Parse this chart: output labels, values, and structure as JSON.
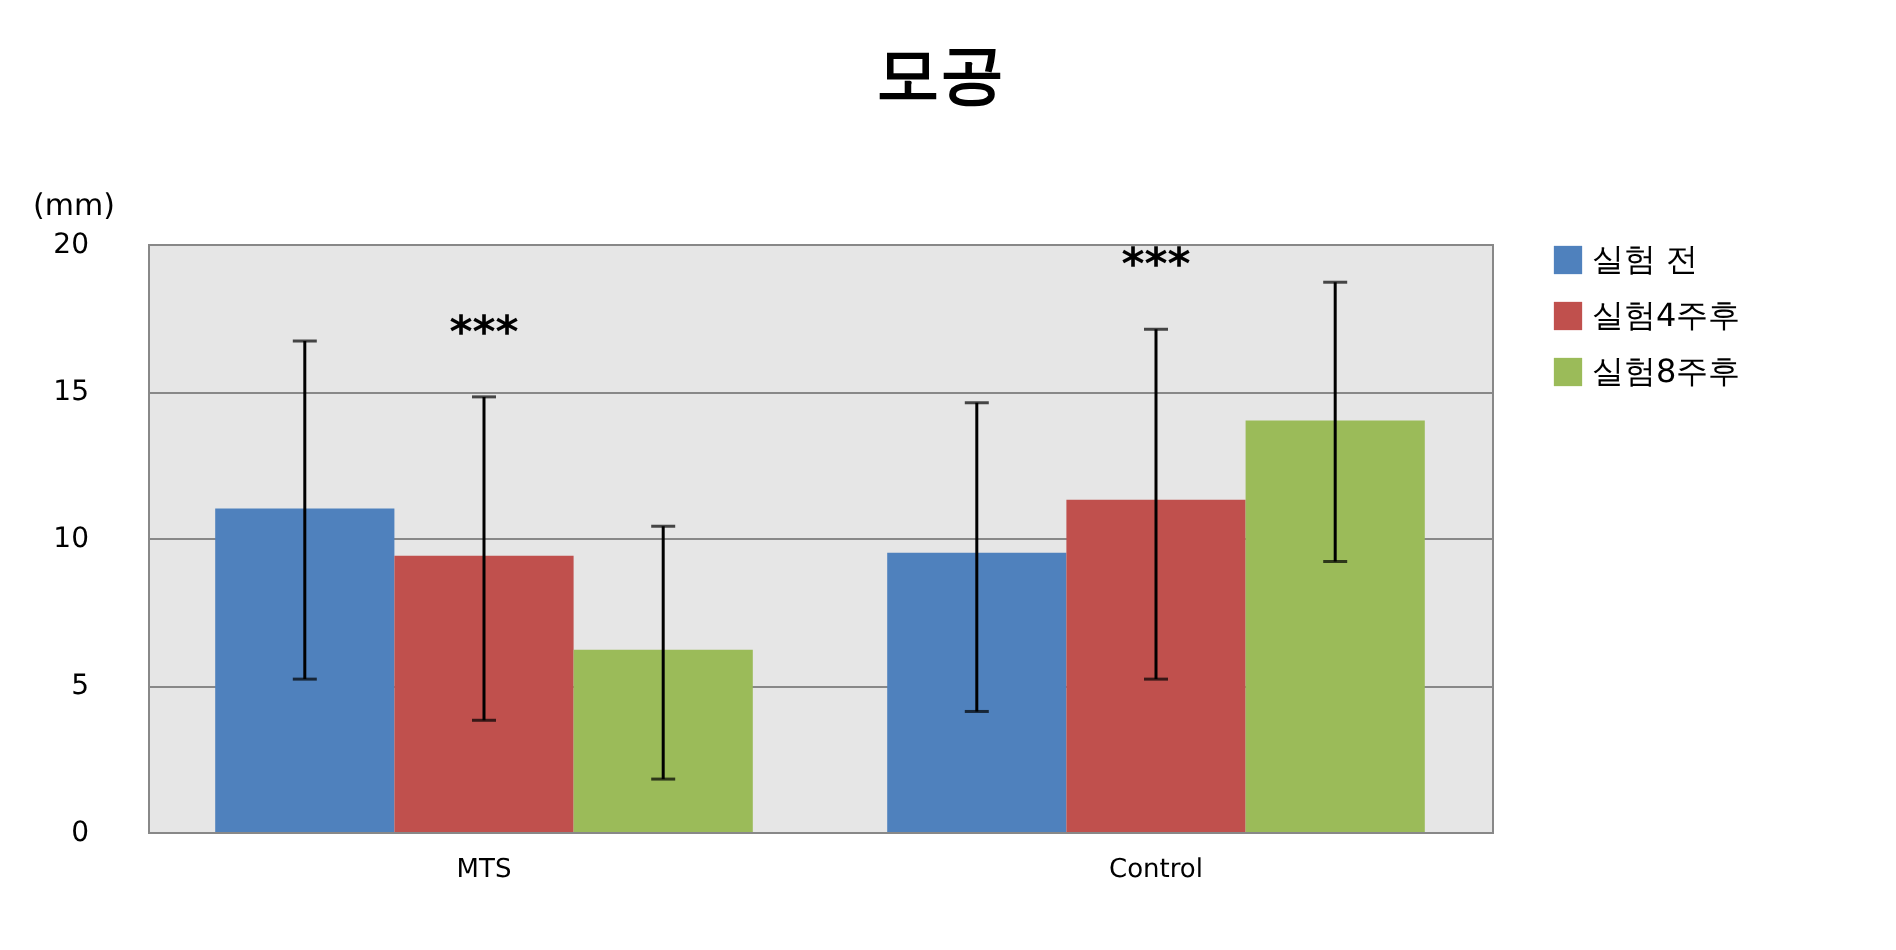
{
  "chart_data": {
    "type": "bar",
    "title": "모공",
    "ylabel": "(mm)",
    "categories": [
      "MTS",
      "Control"
    ],
    "series": [
      {
        "name": "실험 전",
        "color": "#4f81bd",
        "values": [
          11.0,
          9.5
        ],
        "errors": [
          [
            5.2,
            16.7
          ],
          [
            4.1,
            14.6
          ]
        ]
      },
      {
        "name": "실험4주후",
        "color": "#c0504d",
        "values": [
          9.4,
          11.3
        ],
        "errors": [
          [
            3.8,
            14.8
          ],
          [
            5.2,
            17.1
          ]
        ]
      },
      {
        "name": "실험8주후",
        "color": "#9bbb59",
        "values": [
          6.2,
          14.0
        ],
        "errors": [
          [
            1.8,
            10.4
          ],
          [
            9.2,
            18.7
          ]
        ]
      }
    ],
    "ylim": [
      0,
      20
    ],
    "yticks": [
      0,
      5,
      10,
      15,
      20
    ],
    "grid": "y",
    "legend": "right",
    "annotations": [
      "***",
      "***"
    ]
  }
}
